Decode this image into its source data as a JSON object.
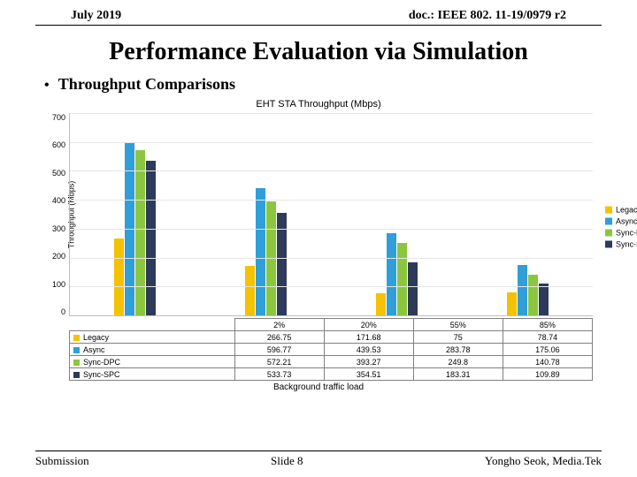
{
  "header": {
    "left": "July 2019",
    "right": "doc.: IEEE 802. 11-19/0979 r2"
  },
  "title": "Performance Evaluation via Simulation",
  "bullet": "Throughput Comparisons",
  "chart": {
    "title": "EHT STA Throughput (Mbps)",
    "ylabel": "Throughput (Mbps)",
    "xlabel": "Background traffic load",
    "ymax": 700,
    "yticks": [
      "700",
      "600",
      "500",
      "400",
      "300",
      "200",
      "100",
      "0"
    ],
    "categories": [
      "2%",
      "20%",
      "55%",
      "85%"
    ],
    "series": [
      {
        "name": "Legacy",
        "color": "#f4c200",
        "values": [
          266.75,
          171.68,
          75,
          78.74
        ]
      },
      {
        "name": "Async",
        "color": "#2f9ed9",
        "values": [
          596.77,
          439.53,
          283.78,
          175.06
        ]
      },
      {
        "name": "Sync-DPC",
        "color": "#8cc63f",
        "values": [
          572.21,
          393.27,
          249.8,
          140.78
        ]
      },
      {
        "name": "Sync-SPC",
        "color": "#2e3a59",
        "values": [
          533.73,
          354.51,
          183.31,
          109.89
        ]
      }
    ]
  },
  "footer": {
    "left": "Submission",
    "center": "Slide 8",
    "right": "Yongho Seok, Media.Tek"
  }
}
